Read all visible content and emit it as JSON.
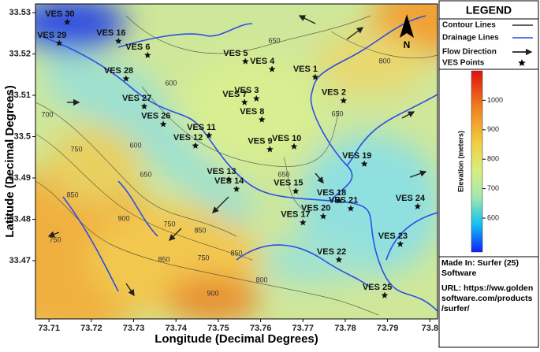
{
  "map": {
    "xlabel": "Longitude (Decimal Degrees)",
    "ylabel": "Latitude (Decimal Degrees)",
    "xlim": [
      73.7068,
      73.8018
    ],
    "ylim": [
      33.4559,
      33.5321
    ],
    "xticks": [
      73.71,
      73.72,
      73.73,
      73.74,
      73.75,
      73.76,
      73.77,
      73.78,
      73.79,
      73.8
    ],
    "yticks": [
      33.47,
      33.48,
      33.49,
      33.5,
      33.51,
      33.52,
      33.53
    ],
    "north": "N",
    "points": [
      {
        "label": "VES 30",
        "lon": 73.7143,
        "lat": 33.5277
      },
      {
        "label": "VES 16",
        "lon": 73.7264,
        "lat": 33.5231
      },
      {
        "label": "VES 29",
        "lon": 73.7124,
        "lat": 33.5226
      },
      {
        "label": "VES 6",
        "lon": 73.7333,
        "lat": 33.5197
      },
      {
        "label": "VES 28",
        "lon": 73.7282,
        "lat": 33.514
      },
      {
        "label": "VES 5",
        "lon": 73.7564,
        "lat": 33.5182
      },
      {
        "label": "VES 4",
        "lon": 73.7627,
        "lat": 33.5163
      },
      {
        "label": "VES 1",
        "lon": 73.7729,
        "lat": 33.5144
      },
      {
        "label": "VES 2",
        "lon": 73.7796,
        "lat": 33.5087
      },
      {
        "label": "VES 7",
        "lon": 73.7562,
        "lat": 33.5083
      },
      {
        "label": "VES 3",
        "lon": 73.759,
        "lat": 33.5092
      },
      {
        "label": "VES 27",
        "lon": 73.7325,
        "lat": 33.5073
      },
      {
        "label": "VES 8",
        "lon": 73.7603,
        "lat": 33.5041
      },
      {
        "label": "VES 11",
        "lon": 73.7478,
        "lat": 33.5003
      },
      {
        "label": "VES 26",
        "lon": 73.737,
        "lat": 33.503
      },
      {
        "label": "VES 9",
        "lon": 73.7622,
        "lat": 33.4969
      },
      {
        "label": "VES 10",
        "lon": 73.7679,
        "lat": 33.4976
      },
      {
        "label": "VES 12",
        "lon": 73.7446,
        "lat": 33.4978
      },
      {
        "label": "VES 19",
        "lon": 73.7845,
        "lat": 33.4934
      },
      {
        "label": "VES 13",
        "lon": 73.7525,
        "lat": 33.4896
      },
      {
        "label": "VES 14",
        "lon": 73.7543,
        "lat": 33.4873
      },
      {
        "label": "VES 15",
        "lon": 73.7683,
        "lat": 33.4868
      },
      {
        "label": "VES 18",
        "lon": 73.7785,
        "lat": 33.4845
      },
      {
        "label": "VES 24",
        "lon": 73.7971,
        "lat": 33.4831
      },
      {
        "label": "VES 17",
        "lon": 73.77,
        "lat": 33.4792
      },
      {
        "label": "VES 21",
        "lon": 73.7813,
        "lat": 33.4826
      },
      {
        "label": "VES 20",
        "lon": 73.7748,
        "lat": 33.4807
      },
      {
        "label": "VES 23",
        "lon": 73.793,
        "lat": 33.474
      },
      {
        "label": "VES 22",
        "lon": 73.7785,
        "lat": 33.4702
      },
      {
        "label": "VES 25",
        "lon": 73.7893,
        "lat": 33.4616
      }
    ],
    "contour_labels": [
      650,
      800,
      600,
      650,
      700,
      750,
      600,
      650,
      650,
      850,
      900,
      750,
      850,
      750,
      850,
      750,
      850,
      800,
      900
    ]
  },
  "legend": {
    "title": "LEGEND",
    "items": [
      "Contour Lines",
      "Drainage Lines",
      "Flow Direction",
      "VES Points"
    ],
    "colorbar": {
      "label": "Elevation (meters)",
      "lim": [
        485,
        1100
      ],
      "ticks": [
        600,
        700,
        800,
        900,
        1000
      ]
    },
    "credit": "Made In: Surfer (25) Software",
    "url": "URL: https://ww.golden software.com/products /surfer/"
  }
}
